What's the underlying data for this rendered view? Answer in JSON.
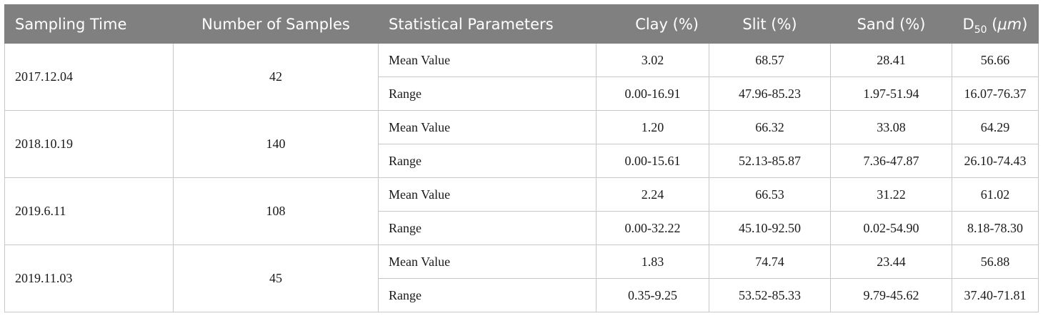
{
  "headers": {
    "sampling_time": "Sampling Time",
    "number_of_samples": "Number of Samples",
    "statistical_parameters": "Statistical Parameters",
    "clay": "Clay (%)",
    "slit": "Slit (%)",
    "sand": "Sand (%)",
    "d50_main": "D",
    "d50_sub": "50",
    "d50_open": " (",
    "d50_unit": "μm",
    "d50_close": ")"
  },
  "rows": [
    {
      "sampling_time": "2017.12.04",
      "samples": "42",
      "mean": {
        "label": "Mean Value",
        "clay": "3.02",
        "slit": "68.57",
        "sand": "28.41",
        "d50": "56.66"
      },
      "range": {
        "label": "Range",
        "clay": "0.00-16.91",
        "slit": "47.96-85.23",
        "sand": "1.97-51.94",
        "d50": "16.07-76.37"
      }
    },
    {
      "sampling_time": "2018.10.19",
      "samples": "140",
      "mean": {
        "label": "Mean Value",
        "clay": "1.20",
        "slit": "66.32",
        "sand": "33.08",
        "d50": "64.29"
      },
      "range": {
        "label": "Range",
        "clay": "0.00-15.61",
        "slit": "52.13-85.87",
        "sand": "7.36-47.87",
        "d50": "26.10-74.43"
      }
    },
    {
      "sampling_time": "2019.6.11",
      "samples": "108",
      "mean": {
        "label": "Mean Value",
        "clay": "2.24",
        "slit": "66.53",
        "sand": "31.22",
        "d50": "61.02"
      },
      "range": {
        "label": "Range",
        "clay": "0.00-32.22",
        "slit": "45.10-92.50",
        "sand": "0.02-54.90",
        "d50": "8.18-78.30"
      }
    },
    {
      "sampling_time": "2019.11.03",
      "samples": "45",
      "mean": {
        "label": "Mean Value",
        "clay": "1.83",
        "slit": "74.74",
        "sand": "23.44",
        "d50": "56.88"
      },
      "range": {
        "label": "Range",
        "clay": "0.35-9.25",
        "slit": "53.52-85.33",
        "sand": "9.79-45.62",
        "d50": "37.40-71.81"
      }
    }
  ],
  "colors": {
    "header_bg": "#808080",
    "header_text": "#ffffff",
    "border": "#c8c8c8"
  }
}
